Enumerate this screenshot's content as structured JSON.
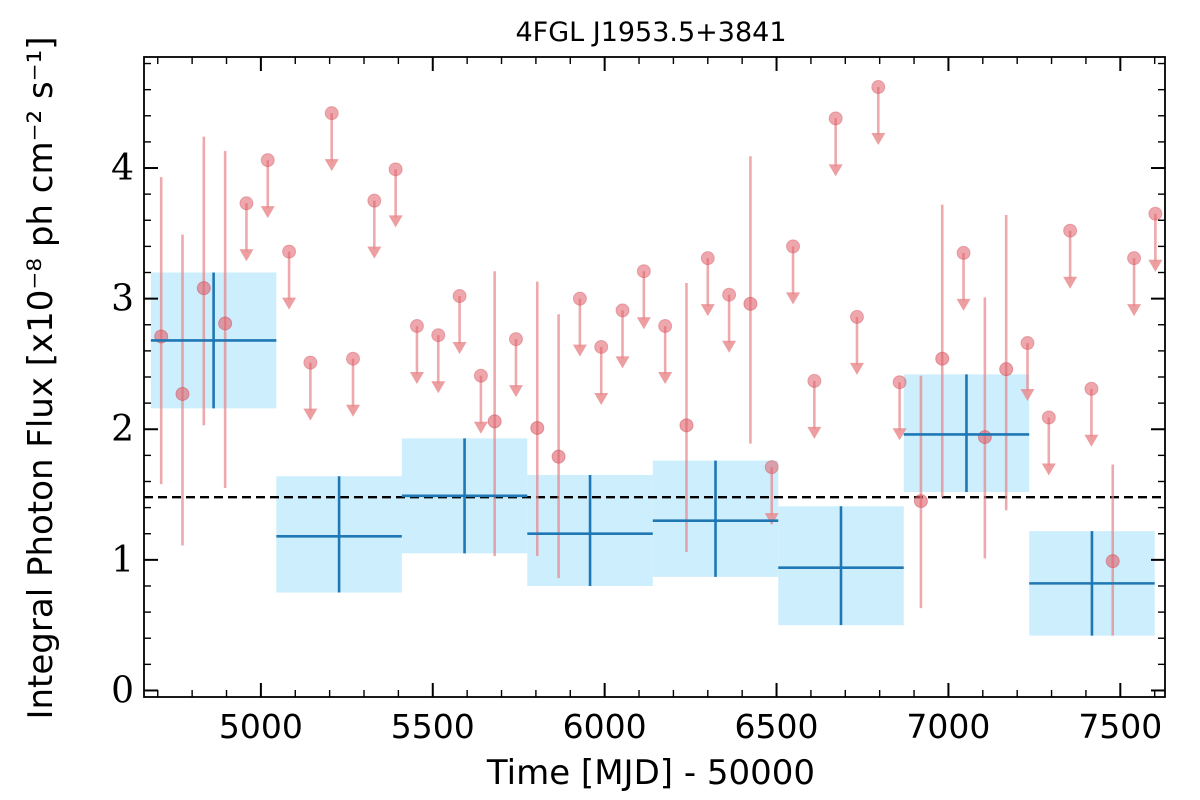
{
  "chart_data": {
    "type": "scatter",
    "title": "4FGL J1953.5+3841",
    "xlabel": "Time [MJD] - 50000",
    "ylabel": "Integral Photon Flux [x10⁻⁸ ph cm⁻² s⁻¹]",
    "xlim": [
      4660,
      7630
    ],
    "ylim": [
      -0.05,
      4.85
    ],
    "xticks": [
      5000,
      5500,
      6000,
      6500,
      7000,
      7500
    ],
    "yticks": [
      0,
      1,
      2,
      3,
      4
    ],
    "xtick_labels": [
      "5000",
      "5500",
      "6000",
      "6500",
      "7000",
      "7500"
    ],
    "ytick_labels": [
      "0",
      "1",
      "2",
      "3",
      "4"
    ],
    "grid": false,
    "mean_flux_line": 1.48,
    "colors": {
      "long_bins": "#1f77b4",
      "long_bins_band": "#cdeefc",
      "short_bins": "#e8868a",
      "mean_line": "#000000"
    },
    "series": [
      {
        "marker": "points",
        "data": [
          {
            "x": 4710,
            "y": 2.71,
            "lo": 1.58,
            "hi": 3.93
          },
          {
            "x": 4772,
            "y": 2.27,
            "lo": 1.11,
            "hi": 3.49
          },
          {
            "x": 4834,
            "y": 3.08,
            "lo": 2.03,
            "hi": 4.24
          },
          {
            "x": 4896,
            "y": 2.81,
            "lo": 1.55,
            "hi": 4.13
          },
          {
            "x": 5804,
            "y": 2.01,
            "lo": 1.03,
            "hi": 3.13
          },
          {
            "x": 5866,
            "y": 1.79,
            "lo": 0.86,
            "hi": 2.88
          },
          {
            "x": 5680,
            "y": 2.06,
            "lo": 1.03,
            "hi": 3.21
          },
          {
            "x": 6238,
            "y": 2.03,
            "lo": 1.06,
            "hi": 3.12
          },
          {
            "x": 6424,
            "y": 2.96,
            "lo": 1.89,
            "hi": 4.09
          },
          {
            "x": 6920,
            "y": 1.45,
            "lo": 0.63,
            "hi": 2.41
          },
          {
            "x": 6982,
            "y": 2.54,
            "lo": 1.48,
            "hi": 3.72
          },
          {
            "x": 7106,
            "y": 1.94,
            "lo": 1.01,
            "hi": 3.01
          },
          {
            "x": 7168,
            "y": 2.46,
            "lo": 1.38,
            "hi": 3.64
          },
          {
            "x": 7478,
            "y": 0.99,
            "lo": 0.42,
            "hi": 1.73
          }
        ]
      },
      {
        "marker": "upper_limits",
        "data": [
          {
            "x": 4958,
            "y": 3.73
          },
          {
            "x": 5020,
            "y": 4.06
          },
          {
            "x": 5082,
            "y": 3.36
          },
          {
            "x": 5144,
            "y": 2.51
          },
          {
            "x": 5206,
            "y": 4.42
          },
          {
            "x": 5268,
            "y": 2.54
          },
          {
            "x": 5330,
            "y": 3.75
          },
          {
            "x": 5392,
            "y": 3.99
          },
          {
            "x": 5454,
            "y": 2.79
          },
          {
            "x": 5516,
            "y": 2.72
          },
          {
            "x": 5578,
            "y": 3.02
          },
          {
            "x": 5640,
            "y": 2.41
          },
          {
            "x": 5742,
            "y": 2.69
          },
          {
            "x": 5928,
            "y": 3.0
          },
          {
            "x": 5990,
            "y": 2.63
          },
          {
            "x": 6052,
            "y": 2.91
          },
          {
            "x": 6114,
            "y": 3.21
          },
          {
            "x": 6176,
            "y": 2.79
          },
          {
            "x": 6300,
            "y": 3.31
          },
          {
            "x": 6362,
            "y": 3.03
          },
          {
            "x": 6486,
            "y": 1.71
          },
          {
            "x": 6548,
            "y": 3.4
          },
          {
            "x": 6610,
            "y": 2.37
          },
          {
            "x": 6672,
            "y": 4.38
          },
          {
            "x": 6734,
            "y": 2.86
          },
          {
            "x": 6796,
            "y": 4.62
          },
          {
            "x": 6858,
            "y": 2.36
          },
          {
            "x": 7044,
            "y": 3.35
          },
          {
            "x": 7230,
            "y": 2.66
          },
          {
            "x": 7292,
            "y": 2.09
          },
          {
            "x": 7354,
            "y": 3.52
          },
          {
            "x": 7416,
            "y": 2.31
          },
          {
            "x": 7540,
            "y": 3.31
          },
          {
            "x": 7602,
            "y": 3.65
          }
        ]
      },
      {
        "marker": "binned",
        "data": [
          {
            "x0": 4680,
            "x1": 5045,
            "y": 2.68,
            "lo": 2.16,
            "hi": 3.2
          },
          {
            "x0": 5045,
            "x1": 5410,
            "y": 1.18,
            "lo": 0.75,
            "hi": 1.64
          },
          {
            "x0": 5410,
            "x1": 5775,
            "y": 1.49,
            "lo": 1.05,
            "hi": 1.93
          },
          {
            "x0": 5775,
            "x1": 6140,
            "y": 1.2,
            "lo": 0.8,
            "hi": 1.65
          },
          {
            "x0": 6140,
            "x1": 6505,
            "y": 1.3,
            "lo": 0.87,
            "hi": 1.76
          },
          {
            "x0": 6505,
            "x1": 6870,
            "y": 0.94,
            "lo": 0.5,
            "hi": 1.41
          },
          {
            "x0": 6870,
            "x1": 7235,
            "y": 1.96,
            "lo": 1.52,
            "hi": 2.42
          },
          {
            "x0": 7235,
            "x1": 7600,
            "y": 0.82,
            "lo": 0.42,
            "hi": 1.22
          }
        ]
      }
    ]
  }
}
